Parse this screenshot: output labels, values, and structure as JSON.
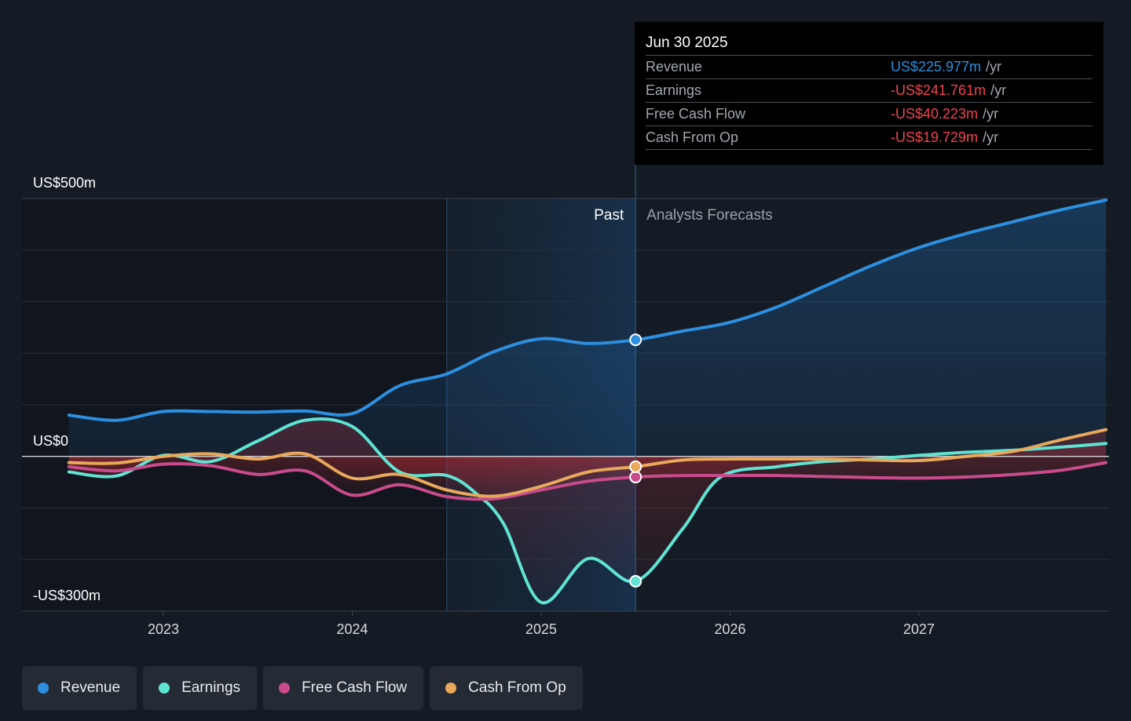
{
  "colors": {
    "revenue": "#2d8fdf",
    "earnings": "#5fe3d2",
    "fcf": "#c94b8c",
    "cfo": "#e8a95b",
    "negative_text": "#f2434e"
  },
  "tooltip": {
    "date": "Jun 30 2025",
    "rows": [
      {
        "label": "Revenue",
        "value": "US$225.977m",
        "unit": "/yr",
        "color": "#2d8fdf"
      },
      {
        "label": "Earnings",
        "value": "-US$241.761m",
        "unit": "/yr",
        "color": "#f2434e"
      },
      {
        "label": "Free Cash Flow",
        "value": "-US$40.223m",
        "unit": "/yr",
        "color": "#f2434e"
      },
      {
        "label": "Cash From Op",
        "value": "-US$19.729m",
        "unit": "/yr",
        "color": "#f2434e"
      }
    ]
  },
  "legend": [
    {
      "label": "Revenue",
      "color": "#2d8fdf"
    },
    {
      "label": "Earnings",
      "color": "#5fe3d2"
    },
    {
      "label": "Free Cash Flow",
      "color": "#c94b8c"
    },
    {
      "label": "Cash From Op",
      "color": "#e8a95b"
    }
  ],
  "chart_data": {
    "type": "line",
    "y_unit": "US$ m",
    "ylim": [
      -300,
      500
    ],
    "y_tick_labels": [
      {
        "value": 500,
        "label": "US$500m"
      },
      {
        "value": 0,
        "label": "US$0"
      },
      {
        "value": -300,
        "label": "-US$300m"
      }
    ],
    "x_tick_labels": [
      {
        "value": 2023.0,
        "label": "2023"
      },
      {
        "value": 2024.0,
        "label": "2024"
      },
      {
        "value": 2025.0,
        "label": "2025"
      },
      {
        "value": 2026.0,
        "label": "2026"
      },
      {
        "value": 2027.0,
        "label": "2027"
      }
    ],
    "xlim": [
      2022.25,
      2027.99
    ],
    "past_region_start": 2024.5,
    "today": 2025.5,
    "past_label": "Past",
    "forecast_label": "Analysts Forecasts",
    "series": [
      {
        "name": "Revenue",
        "key": "revenue",
        "points": [
          [
            2022.5,
            80
          ],
          [
            2022.75,
            70
          ],
          [
            2023.0,
            87
          ],
          [
            2023.25,
            87
          ],
          [
            2023.5,
            86
          ],
          [
            2023.75,
            88
          ],
          [
            2024.0,
            83
          ],
          [
            2024.25,
            137
          ],
          [
            2024.5,
            160
          ],
          [
            2024.75,
            203
          ],
          [
            2025.0,
            228
          ],
          [
            2025.25,
            219
          ],
          [
            2025.5,
            226
          ],
          [
            2025.75,
            243
          ],
          [
            2026.0,
            260
          ],
          [
            2026.25,
            290
          ],
          [
            2026.5,
            330
          ],
          [
            2026.75,
            370
          ],
          [
            2027.0,
            405
          ],
          [
            2027.25,
            432
          ],
          [
            2027.5,
            455
          ],
          [
            2027.75,
            478
          ],
          [
            2027.99,
            497
          ]
        ]
      },
      {
        "name": "Earnings",
        "key": "earnings",
        "points": [
          [
            2022.5,
            -30
          ],
          [
            2022.75,
            -38
          ],
          [
            2023.0,
            2
          ],
          [
            2023.25,
            -10
          ],
          [
            2023.5,
            30
          ],
          [
            2023.75,
            70
          ],
          [
            2024.0,
            58
          ],
          [
            2024.25,
            -30
          ],
          [
            2024.5,
            -37
          ],
          [
            2024.65,
            -70
          ],
          [
            2024.8,
            -130
          ],
          [
            2025.0,
            -283
          ],
          [
            2025.25,
            -198
          ],
          [
            2025.5,
            -242
          ],
          [
            2025.75,
            -140
          ],
          [
            2025.95,
            -40
          ],
          [
            2026.25,
            -20
          ],
          [
            2026.5,
            -10
          ],
          [
            2026.75,
            -5
          ],
          [
            2027.0,
            2
          ],
          [
            2027.25,
            8
          ],
          [
            2027.5,
            12
          ],
          [
            2027.75,
            18
          ],
          [
            2027.99,
            25
          ]
        ]
      },
      {
        "name": "Free Cash Flow",
        "key": "fcf",
        "points": [
          [
            2022.5,
            -20
          ],
          [
            2022.75,
            -28
          ],
          [
            2023.0,
            -15
          ],
          [
            2023.25,
            -18
          ],
          [
            2023.5,
            -35
          ],
          [
            2023.75,
            -28
          ],
          [
            2024.0,
            -75
          ],
          [
            2024.25,
            -55
          ],
          [
            2024.5,
            -78
          ],
          [
            2024.75,
            -82
          ],
          [
            2025.0,
            -65
          ],
          [
            2025.25,
            -48
          ],
          [
            2025.5,
            -40
          ],
          [
            2025.75,
            -37
          ],
          [
            2026.0,
            -37
          ],
          [
            2026.25,
            -37
          ],
          [
            2026.5,
            -39
          ],
          [
            2026.75,
            -41
          ],
          [
            2027.0,
            -42
          ],
          [
            2027.25,
            -40
          ],
          [
            2027.5,
            -35
          ],
          [
            2027.75,
            -27
          ],
          [
            2027.99,
            -12
          ]
        ]
      },
      {
        "name": "Cash From Op",
        "key": "cfo",
        "points": [
          [
            2022.5,
            -12
          ],
          [
            2022.75,
            -13
          ],
          [
            2023.0,
            0
          ],
          [
            2023.25,
            5
          ],
          [
            2023.5,
            -5
          ],
          [
            2023.75,
            5
          ],
          [
            2024.0,
            -42
          ],
          [
            2024.25,
            -35
          ],
          [
            2024.5,
            -65
          ],
          [
            2024.75,
            -77
          ],
          [
            2025.0,
            -58
          ],
          [
            2025.25,
            -30
          ],
          [
            2025.5,
            -20
          ],
          [
            2025.75,
            -7
          ],
          [
            2026.0,
            -5
          ],
          [
            2026.25,
            -5
          ],
          [
            2026.5,
            -5
          ],
          [
            2026.75,
            -7
          ],
          [
            2027.0,
            -8
          ],
          [
            2027.25,
            0
          ],
          [
            2027.5,
            10
          ],
          [
            2027.75,
            32
          ],
          [
            2027.99,
            52
          ]
        ]
      }
    ]
  }
}
